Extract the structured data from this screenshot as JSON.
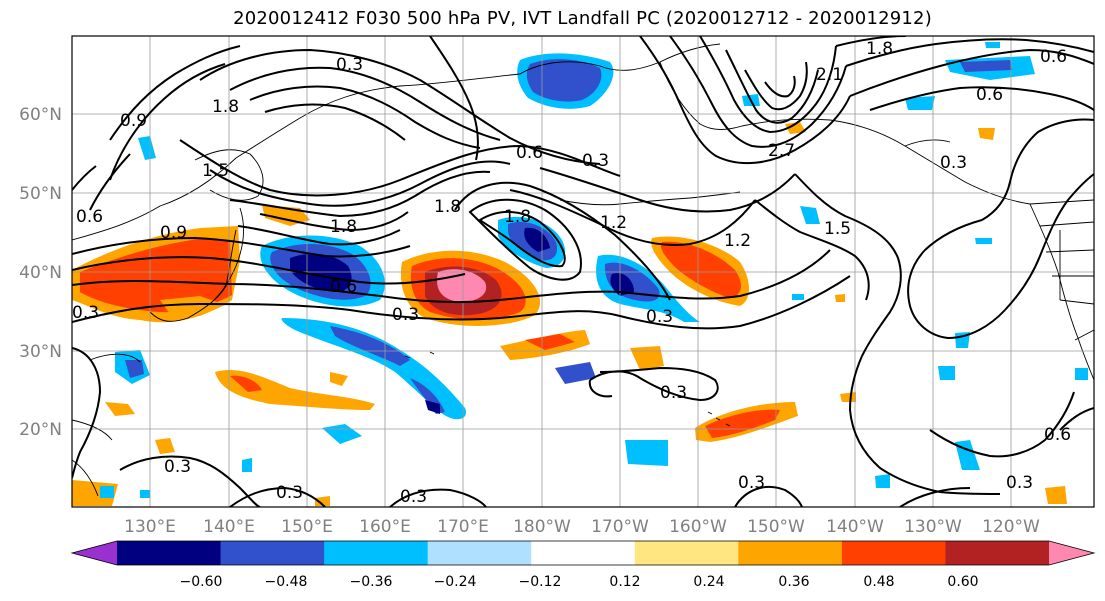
{
  "title": "2020012412 F030 500 hPa PV, IVT Landfall PC (2020012712 - 2020012912)",
  "lat_labels": [
    "60°N",
    "50°N",
    "40°N",
    "30°N",
    "20°N"
  ],
  "lon_labels": [
    "130°E",
    "140°E",
    "150°E",
    "160°E",
    "170°E",
    "180°W",
    "170°W",
    "160°W",
    "150°W",
    "140°W",
    "130°W",
    "120°W"
  ],
  "colorbar": {
    "tick_labels": [
      "−0.60",
      "−0.48",
      "−0.36",
      "−0.24",
      "−0.12",
      "0.12",
      "0.24",
      "0.36",
      "0.48",
      "0.60"
    ],
    "colors": [
      "#9b30d0",
      "#000080",
      "#3050cc",
      "#00bfff",
      "#b0e0ff",
      "#ffffff",
      "#ffe680",
      "#ffa500",
      "#ff4000",
      "#b22222",
      "#ff88b0"
    ]
  },
  "contour_labels": [
    "0.3",
    "0.9",
    "1.8",
    "1.5",
    "0.6",
    "1.8",
    "0.9",
    "0.3",
    "0.6",
    "1.8",
    "1.2",
    "0.3",
    "0.6",
    "1.8",
    "2.1",
    "2.7",
    "1.2",
    "1.5",
    "0.6",
    "0.3",
    "0.3",
    "0.3",
    "0.3",
    "0.3",
    "0.3",
    "0.3",
    "0.6",
    "0.3",
    "1.8",
    "0.6",
    "0.3"
  ]
}
